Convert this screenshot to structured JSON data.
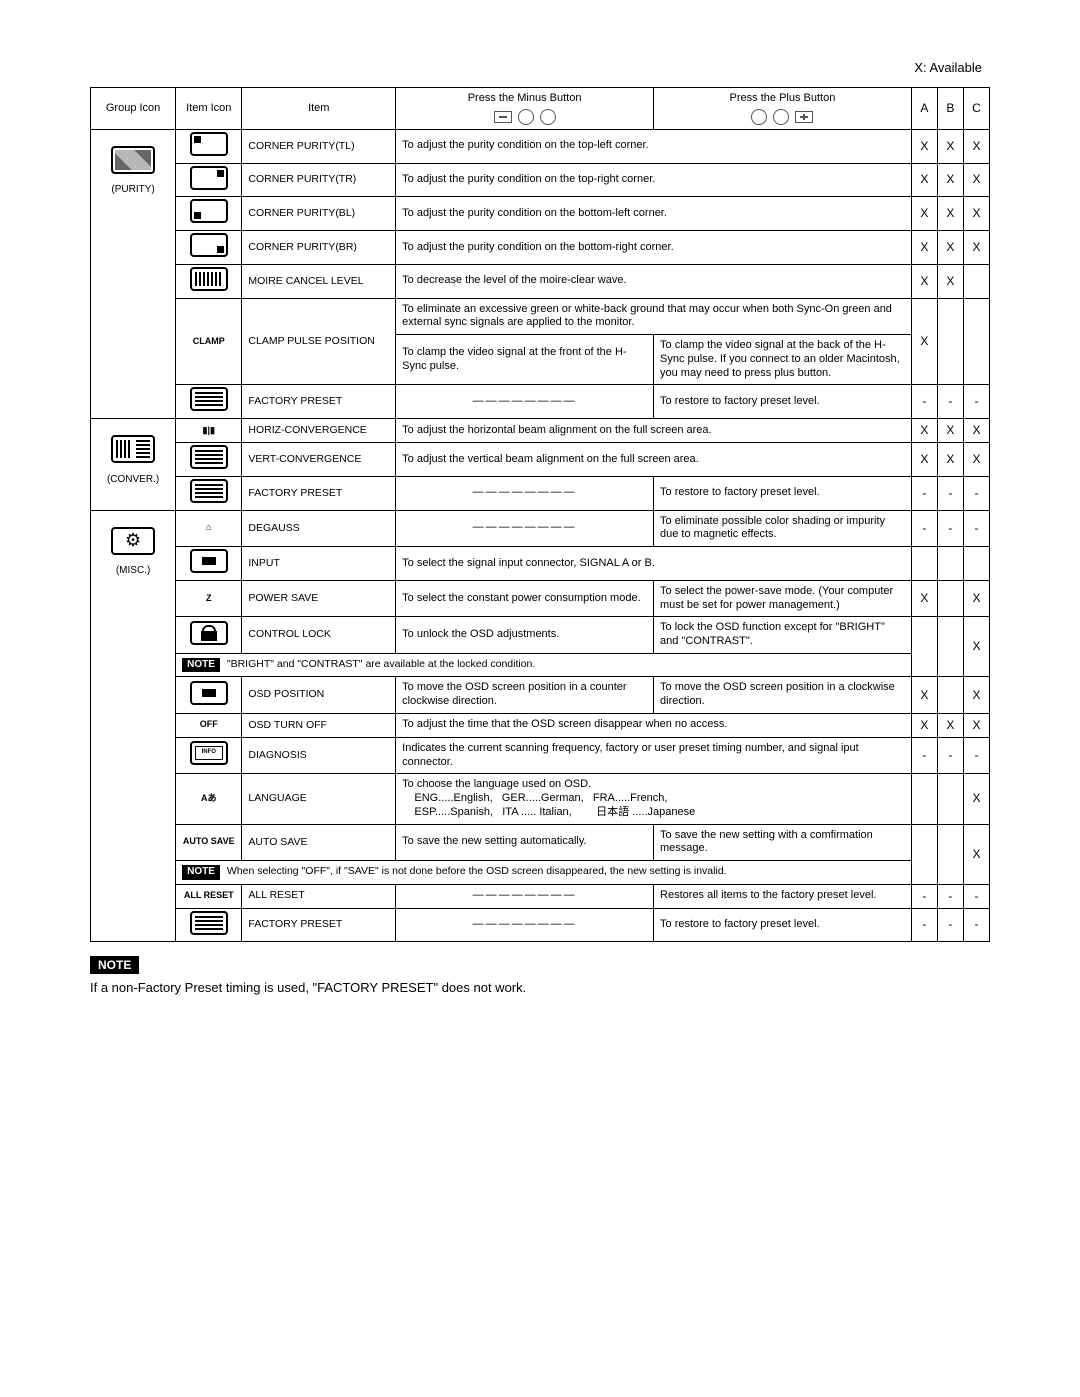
{
  "legend": "X: Available",
  "headers": {
    "group_icon": "Group Icon",
    "item_icon": "Item Icon",
    "item": "Item",
    "minus": "Press the Minus Button",
    "plus": "Press the Plus Button",
    "a": "A",
    "b": "B",
    "c": "C"
  },
  "groups": [
    {
      "label": "(PURITY)",
      "icon": "group-purity-graphic",
      "items": [
        {
          "icon_mark": "mark-tl",
          "name": "CORNER PURITY(TL)",
          "span": "To adjust the purity condition on the top-left corner.",
          "a": "X",
          "b": "X",
          "c": "X"
        },
        {
          "icon_mark": "mark-tr",
          "name": "CORNER PURITY(TR)",
          "span": "To adjust the purity condition on the top-right corner.",
          "a": "X",
          "b": "X",
          "c": "X"
        },
        {
          "icon_mark": "mark-bl",
          "name": "CORNER PURITY(BL)",
          "span": "To adjust the purity condition on the bottom-left corner.",
          "a": "X",
          "b": "X",
          "c": "X"
        },
        {
          "icon_mark": "mark-br",
          "name": "CORNER PURITY(BR)",
          "span": "To adjust the purity condition on the bottom-right corner.",
          "a": "X",
          "b": "X",
          "c": "X"
        },
        {
          "icon_mark": "mark-hbars",
          "name": "MOIRE CANCEL LEVEL",
          "span": "To decrease the level of the moire-clear wave.",
          "a": "X",
          "b": "X",
          "c": ""
        },
        {
          "icon_text": "CLAMP",
          "name": "CLAMP PULSE POSITION",
          "span_top": "To eliminate an excessive green or white-back ground that may occur when both Sync-On green and external sync signals are applied to the monitor.",
          "minus": "To clamp the video signal at the front of the H-Sync pulse.",
          "plus": "To clamp the video signal at the back of the H-Sync pulse. If you connect to an older Macintosh, you may need to press plus button.",
          "a": "X",
          "b": "",
          "c": "",
          "tall": true
        },
        {
          "icon_mark": "mark-bars",
          "name": "FACTORY PRESET",
          "minus": "————————",
          "plus": "To restore to factory preset level.",
          "a": "-",
          "b": "-",
          "c": "-"
        }
      ]
    },
    {
      "label": "(CONVER.)",
      "icon": "group-conver-graphic",
      "items": [
        {
          "icon_text": "▮|▮",
          "name": "HORIZ-CONVERGENCE",
          "span": "To adjust the horizontal beam alignment on the full screen area.",
          "a": "X",
          "b": "X",
          "c": "X"
        },
        {
          "icon_mark": "mark-bars",
          "name": "VERT-CONVERGENCE",
          "span": "To adjust the vertical beam alignment on the full screen area.",
          "a": "X",
          "b": "X",
          "c": "X"
        },
        {
          "icon_mark": "mark-bars",
          "name": "FACTORY PRESET",
          "minus": "————————",
          "plus": "To restore to factory preset level.",
          "a": "-",
          "b": "-",
          "c": "-"
        }
      ]
    },
    {
      "label": "(MISC.)",
      "icon": "group-misc-graphic",
      "items": [
        {
          "icon_text": "⌂",
          "name": "DEGAUSS",
          "minus": "————————",
          "plus": "To eliminate possible color shading or impurity due to magnetic effects.",
          "a": "-",
          "b": "-",
          "c": "-"
        },
        {
          "icon_mark": "mark-center",
          "name": "INPUT",
          "span": "To select the signal input connector, SIGNAL A or B.",
          "a": "",
          "b": "",
          "c": ""
        },
        {
          "icon_text": "Z",
          "name": "POWER SAVE",
          "minus": "To select the constant power consumption mode.",
          "plus": "To select the power-save mode. (Your computer must be set for power management.)",
          "a": "X",
          "b": "",
          "c": "X"
        },
        {
          "icon_mark": "mark-lock",
          "name": "CONTROL LOCK",
          "minus": "To unlock the OSD adjustments.",
          "plus": "To lock the OSD function except for \"BRIGHT\" and \"CONTRAST\".",
          "a": "",
          "b": "",
          "c": "X",
          "note": "\"BRIGHT\" and \"CONTRAST\" are available at the locked condition."
        },
        {
          "icon_mark": "mark-center",
          "name": "OSD POSITION",
          "minus": "To move the OSD screen position in a counter clockwise direction.",
          "plus": "To move the OSD screen position in a clockwise direction.",
          "a": "X",
          "b": "",
          "c": "X"
        },
        {
          "icon_text": "OFF",
          "name": "OSD TURN OFF",
          "span": "To adjust the time that the OSD screen disappear when no access.",
          "a": "X",
          "b": "X",
          "c": "X"
        },
        {
          "icon_mark": "mark-info",
          "name": "DIAGNOSIS",
          "span": "Indicates the current scanning frequency, factory or user preset timing number, and signal iput connector.",
          "a": "-",
          "b": "-",
          "c": "-"
        },
        {
          "icon_text": "Aあ",
          "name": "LANGUAGE",
          "span": "To choose the language used on OSD.\n    ENG.....English,   GER.....German,   FRA.....French,\n    ESP.....Spanish,   ITA ..... Italian,        日本語 .....Japanese",
          "a": "",
          "b": "",
          "c": "X",
          "multiline": true
        },
        {
          "icon_text": "AUTO SAVE",
          "name": "AUTO SAVE",
          "minus": "To save the new setting automatically.",
          "plus": "To save the new setting with a comfirmation message.",
          "a": "",
          "b": "",
          "c": "X",
          "note": "When selecting \"OFF\", if \"SAVE\" is not done before the OSD screen disappeared, the new setting is invalid."
        },
        {
          "icon_text": "ALL RESET",
          "name": "ALL RESET",
          "minus": "————————",
          "plus": "Restores all items to the factory preset level.",
          "a": "-",
          "b": "-",
          "c": "-"
        },
        {
          "icon_mark": "mark-bars",
          "name": "FACTORY PRESET",
          "minus": "————————",
          "plus": "To restore to factory preset level.",
          "a": "-",
          "b": "-",
          "c": "-"
        }
      ]
    }
  ],
  "footer_note": "If a non-Factory Preset timing is used, \"FACTORY PRESET\" does not work.",
  "note_label": "NOTE"
}
